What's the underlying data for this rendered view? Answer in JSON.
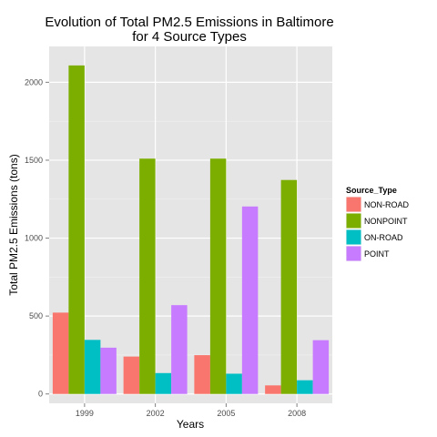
{
  "chart_data": {
    "type": "bar",
    "title_lines": [
      "Evolution of Total PM2.5 Emissions in Baltimore",
      "for 4 Source Types"
    ],
    "xlabel": "Years",
    "ylabel": "Total PM2.5 Emissions (tons)",
    "categories": [
      "1999",
      "2002",
      "2005",
      "2008"
    ],
    "y_ticks": [
      0,
      500,
      1000,
      1500,
      2000
    ],
    "ylim": [
      -60,
      2230
    ],
    "grid": true,
    "legend_position": "right",
    "legend_title": "Source_Type",
    "series": [
      {
        "name": "NON-ROAD",
        "color": "#F8766D",
        "values": [
          522,
          240,
          249,
          55
        ]
      },
      {
        "name": "NONPOINT",
        "color": "#7CAE00",
        "values": [
          2108,
          1510,
          1510,
          1373
        ]
      },
      {
        "name": "ON-ROAD",
        "color": "#00BFC4",
        "values": [
          347,
          134,
          130,
          88
        ]
      },
      {
        "name": "POINT",
        "color": "#C77CFF",
        "values": [
          297,
          570,
          1203,
          345
        ]
      }
    ]
  }
}
